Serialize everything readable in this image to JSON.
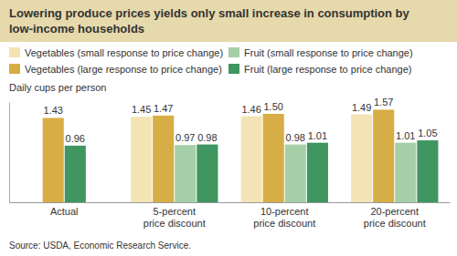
{
  "chart_data": {
    "type": "bar",
    "title": "Lowering produce prices yields only small increase in consumption by low-income households",
    "ylabel": "Daily cups per person",
    "source": "Source:  USDA, Economic Research Service.",
    "categories": [
      "Actual",
      "5-percent price discount",
      "10-percent price discount",
      "20-percent price discount"
    ],
    "series": [
      {
        "name": "Vegetables (small response to price change)",
        "color": "#f4e4b5",
        "values": [
          null,
          1.45,
          1.46,
          1.49
        ],
        "value_labels": [
          null,
          "1.45",
          "1.46",
          "1.49"
        ]
      },
      {
        "name": "Vegetables (large response to price change)",
        "color": "#d7ae45",
        "values": [
          1.43,
          1.47,
          1.5,
          1.57
        ],
        "value_labels": [
          "1.43",
          "1.47",
          "1.50",
          "1.57"
        ]
      },
      {
        "name": "Fruit (small response to price change)",
        "color": "#a6cfa8",
        "values": [
          null,
          0.97,
          0.98,
          1.01
        ],
        "value_labels": [
          null,
          "0.97",
          "0.98",
          "1.01"
        ]
      },
      {
        "name": "Fruit (large response to price change)",
        "color": "#3f9660",
        "values": [
          0.96,
          0.98,
          1.01,
          1.05
        ],
        "value_labels": [
          "0.96",
          "0.98",
          "1.01",
          "1.05"
        ]
      }
    ],
    "ylim": [
      0,
      1.7
    ],
    "yticks": [],
    "grid": false,
    "legend": "top",
    "data_labels": true,
    "tick_labels": "x"
  }
}
